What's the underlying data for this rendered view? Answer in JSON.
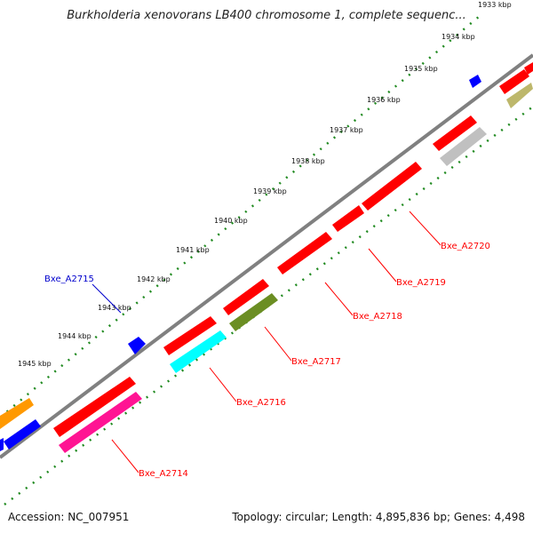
{
  "title": "Burkholderia xenovorans LB400 chromosome 1, complete sequenc...",
  "footer": {
    "accession": "Accession: NC_007951",
    "info": "Topology: circular; Length: 4,895,836 bp; Genes: 4,498"
  },
  "ticks": [
    "1933 kbp",
    "1934 kbp",
    "1935 kbp",
    "1936 kbp",
    "1937 kbp",
    "1938 kbp",
    "1939 kbp",
    "1940 kbp",
    "1941 kbp",
    "1942 kbp",
    "1943 kbp",
    "1944 kbp",
    "1945 kbp"
  ],
  "gene_labels": [
    "Bxe_A2715",
    "Bxe_A2720",
    "Bxe_A2719",
    "Bxe_A2718",
    "Bxe_A2717",
    "Bxe_A2716",
    "Bxe_A2714"
  ],
  "colors": {
    "backbone": "#888888",
    "scale_dots": "#228b22",
    "red": "#ff0000",
    "blue": "#0000ff",
    "orange": "#ff9900",
    "cyan": "#00ffff",
    "olive": "#6b8e23",
    "magenta": "#ff1493",
    "gray": "#c0c0c0",
    "khaki": "#bdb76b",
    "label_red": "#ff0000",
    "label_blue": "#0000cc"
  }
}
